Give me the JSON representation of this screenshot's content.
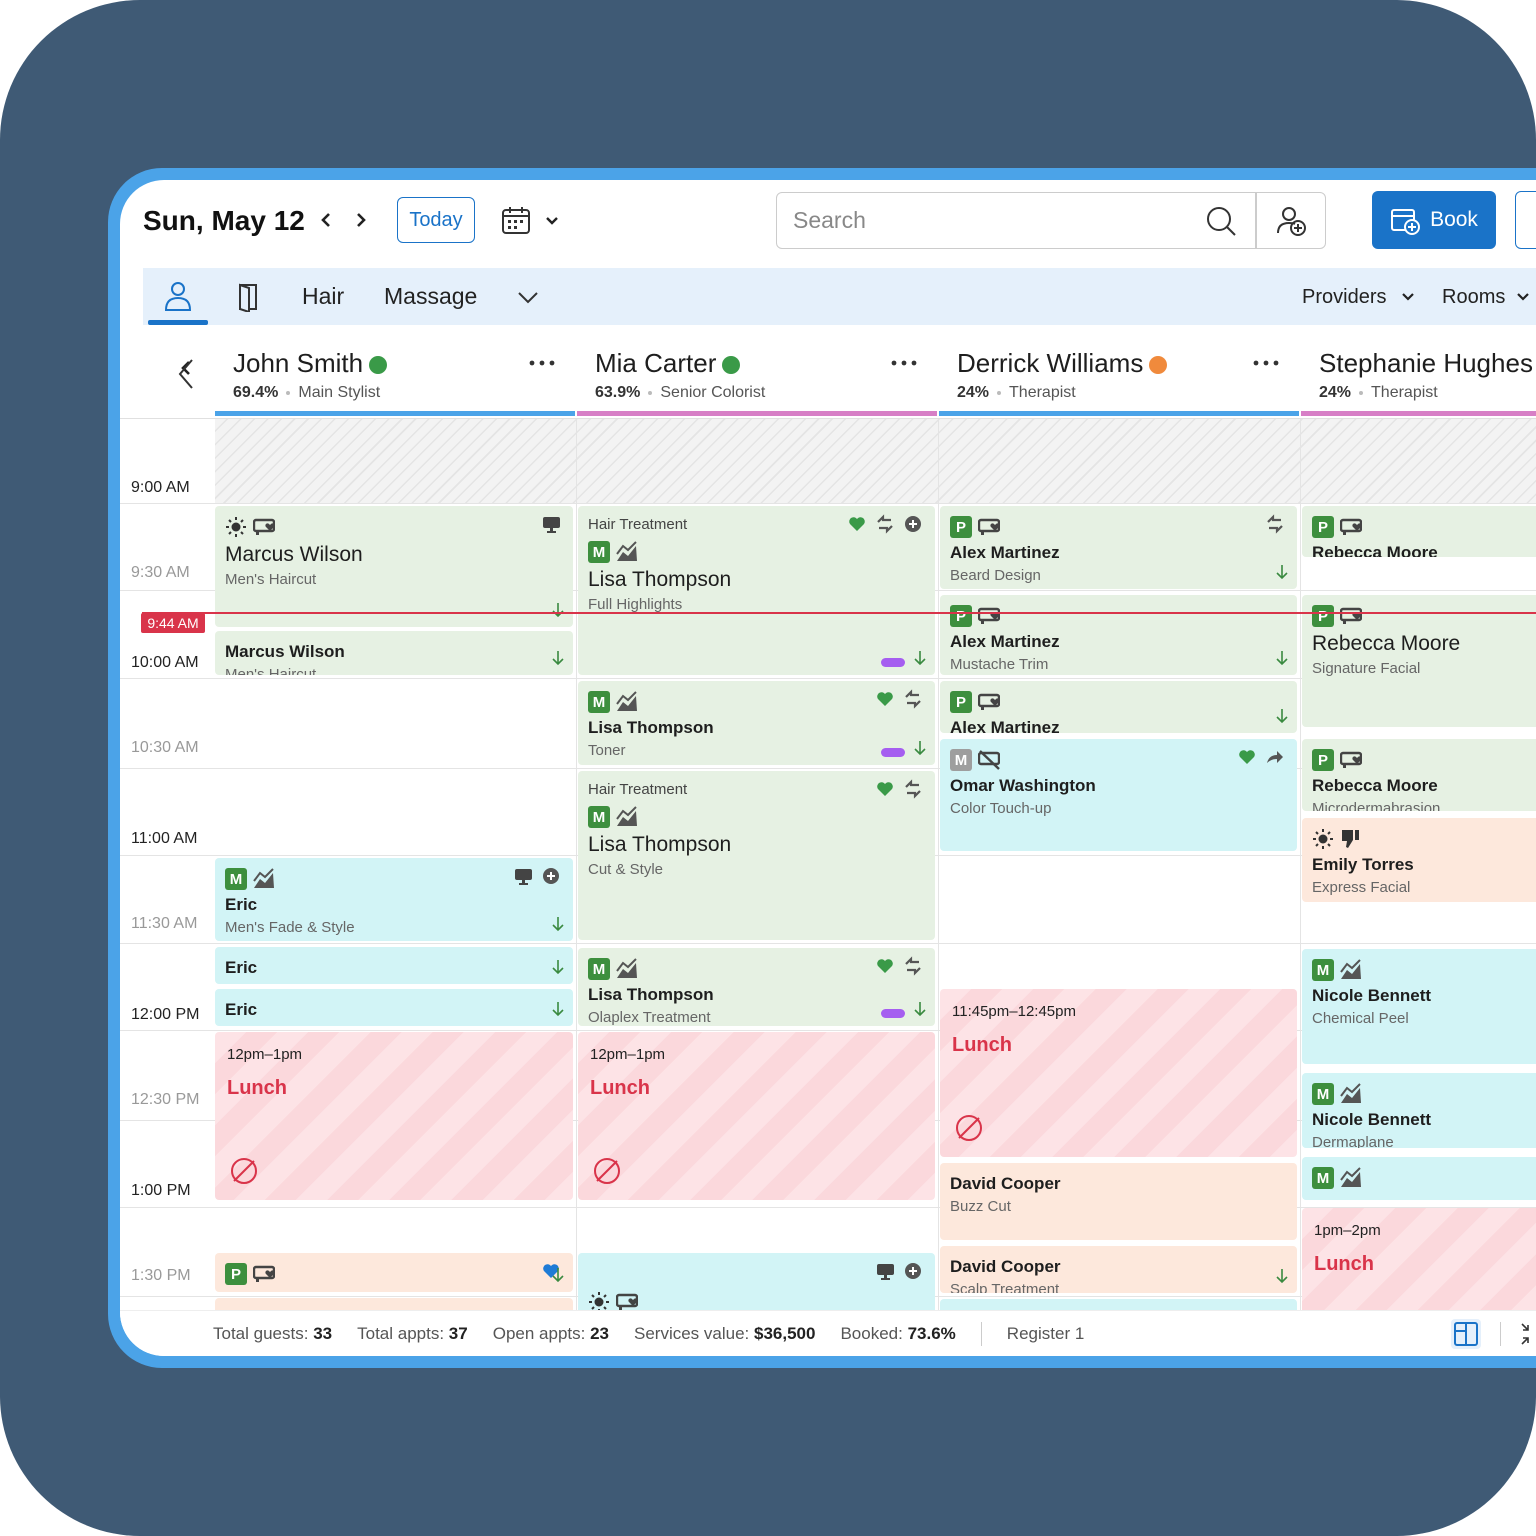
{
  "header": {
    "date": "Sun, May 12",
    "today": "Today",
    "search_placeholder": "Search",
    "book": "Book"
  },
  "tabs": [
    "Hair",
    "Massage"
  ],
  "filters": [
    "Providers",
    "Rooms"
  ],
  "current_time": "9:44 AM",
  "times": [
    "9:00 AM",
    "9:30 AM",
    "10:00 AM",
    "10:30 AM",
    "11:00 AM",
    "11:30 AM",
    "12:00 PM",
    "12:30 PM",
    "1:00 PM",
    "1:30 PM"
  ],
  "providers": [
    {
      "name": "John Smith",
      "pct": "69.4%",
      "role": "Main Stylist",
      "appointments": [
        {
          "client": "Marcus Wilson",
          "service": "Men's Haircut"
        },
        {
          "client": "Marcus Wilson",
          "service": "Men's Haircut"
        },
        {
          "badge": "M",
          "client": "Eric",
          "service": "Men's Fade & Style"
        },
        {
          "client": "Eric"
        },
        {
          "client": "Eric"
        },
        {
          "time": "12pm–1pm",
          "label": "Lunch"
        },
        {
          "badge": "P"
        }
      ]
    },
    {
      "name": "Mia Carter",
      "pct": "63.9%",
      "role": "Senior Colorist",
      "appointments": [
        {
          "title": "Hair Treatment",
          "badge": "M",
          "client": "Lisa Thompson",
          "service": "Full Highlights"
        },
        {
          "badge": "M",
          "client": "Lisa Thompson",
          "service": "Toner"
        },
        {
          "title": "Hair Treatment",
          "badge": "M",
          "client": "Lisa Thompson",
          "service": "Cut & Style"
        },
        {
          "badge": "M",
          "client": "Lisa Thompson",
          "service": "Olaplex Treatment"
        },
        {
          "time": "12pm–1pm",
          "label": "Lunch"
        }
      ]
    },
    {
      "name": "Derrick Williams",
      "pct": "24%",
      "role": "Therapist",
      "appointments": [
        {
          "badge": "P",
          "client": "Alex Martinez",
          "service": "Beard Design"
        },
        {
          "badge": "P",
          "client": "Alex Martinez",
          "service": "Mustache Trim"
        },
        {
          "badge": "P",
          "client": "Alex Martinez"
        },
        {
          "badge": "M",
          "client": "Omar Washington",
          "service": "Color Touch-up"
        },
        {
          "time": "11:45pm–12:45pm",
          "label": "Lunch"
        },
        {
          "client": "David Cooper",
          "service": "Buzz Cut"
        },
        {
          "client": "David Cooper",
          "service": "Scalp Treatment"
        }
      ]
    },
    {
      "name": "Stephanie Hughes",
      "pct": "24%",
      "role": "Therapist",
      "appointments": [
        {
          "badge": "P",
          "client": "Rebecca Moore"
        },
        {
          "badge": "P",
          "client": "Rebecca Moore",
          "service": "Signature Facial"
        },
        {
          "badge": "P",
          "client": "Rebecca Moore",
          "service": "Microdermabrasion"
        },
        {
          "client": "Emily Torres",
          "service": "Express Facial"
        },
        {
          "badge": "M",
          "client": "Nicole Bennett",
          "service": "Chemical Peel"
        },
        {
          "badge": "M",
          "client": "Nicole Bennett",
          "service": "Dermaplane"
        },
        {
          "badge": "M"
        },
        {
          "time": "1pm–2pm",
          "label": "Lunch"
        }
      ]
    }
  ],
  "footer": {
    "stats": [
      {
        "label": "Total guests:",
        "value": 33
      },
      {
        "label": "Total appts:",
        "value": 37
      },
      {
        "label": "Open appts:",
        "value": 23
      },
      {
        "label": "Services value:",
        "value": "$36,500"
      },
      {
        "label": "Booked:",
        "value": "73.6%"
      }
    ],
    "register": "Register 1"
  }
}
